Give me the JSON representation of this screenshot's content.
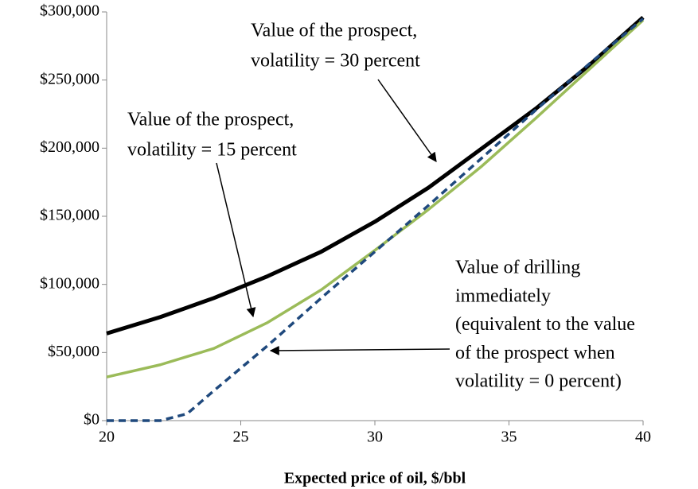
{
  "chart_data": {
    "type": "line",
    "xlabel": "Expected price of oil, $/bbl",
    "x": [
      20,
      22,
      23,
      24,
      26,
      28,
      30,
      32,
      34,
      36,
      38,
      40
    ],
    "series": [
      {
        "color": "#000000",
        "dash": false,
        "values": [
          64000,
          76000,
          83000,
          90000,
          106000,
          124000,
          146000,
          171000,
          200000,
          229000,
          261000,
          296000
        ]
      },
      {
        "color": "#9bbb59",
        "dash": false,
        "values": [
          32000,
          41000,
          47000,
          53000,
          72000,
          96000,
          125000,
          155000,
          187000,
          222000,
          258000,
          294000
        ]
      },
      {
        "color": "#1f497d",
        "dash": true,
        "values": [
          0,
          0,
          5000,
          22000,
          55000,
          90000,
          124000,
          158000,
          193000,
          228000,
          262000,
          295000
        ]
      }
    ],
    "xlim": [
      20,
      40
    ],
    "xticks": [
      20,
      25,
      30,
      35,
      40
    ],
    "ylim": [
      0,
      300000
    ],
    "yticks": [
      {
        "value": 0,
        "label": "$0"
      },
      {
        "value": 50000,
        "label": "$50,000"
      },
      {
        "value": 100000,
        "label": "$100,000"
      },
      {
        "value": 150000,
        "label": "$150,000"
      },
      {
        "value": 200000,
        "label": "$200,000"
      },
      {
        "value": 250000,
        "label": "$250,000"
      },
      {
        "value": 300000,
        "label": "$300,000"
      }
    ],
    "annotations": [
      [
        "Value of the prospect,",
        "volatility = 30 percent"
      ],
      [
        "Value of the prospect,",
        "volatility = 15 percent"
      ],
      [
        "Value of drilling",
        "immediately",
        "(equivalent to the value",
        "of the prospect when",
        "volatility = 0 percent)"
      ]
    ]
  }
}
